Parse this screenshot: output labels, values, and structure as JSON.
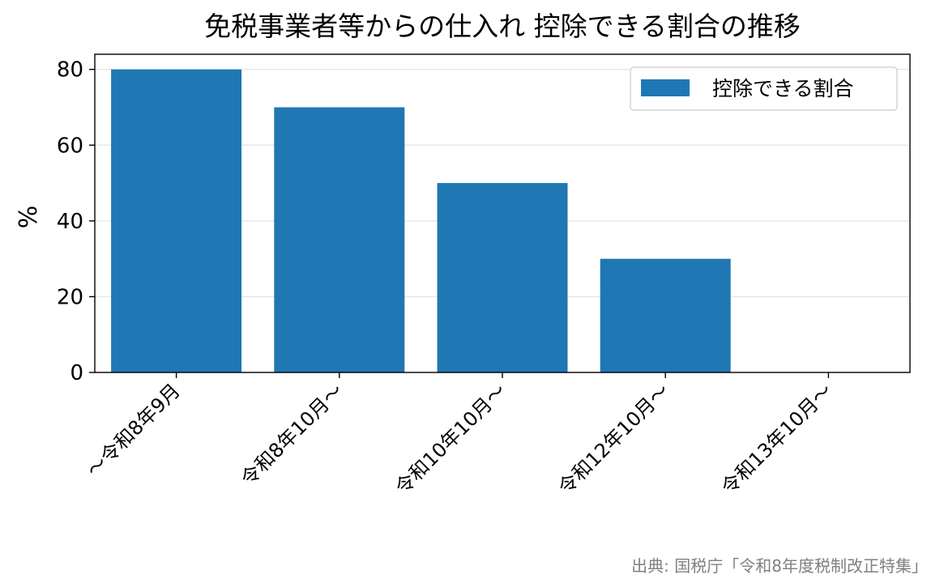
{
  "chart_data": {
    "type": "bar",
    "title": "免税事業者等からの仕入れ 控除できる割合の推移",
    "xlabel": "",
    "ylabel": "%",
    "categories": [
      "〜令和8年9月",
      "令和8年10月〜",
      "令和10年10月〜",
      "令和12年10月〜",
      "令和13年10月〜"
    ],
    "series": [
      {
        "name": "控除できる割合",
        "values": [
          80,
          70,
          50,
          30,
          0
        ],
        "color": "#1f77b4"
      }
    ],
    "ylim": [
      0,
      84
    ],
    "yticks": [
      0,
      20,
      40,
      60,
      80
    ],
    "ytick_labels": [
      "0",
      "20",
      "40",
      "60",
      "80"
    ],
    "grid": "y",
    "legend": "top-right",
    "xtick_rotation": -45
  },
  "source": "出典: 国税庁「令和8年度税制改正特集」"
}
